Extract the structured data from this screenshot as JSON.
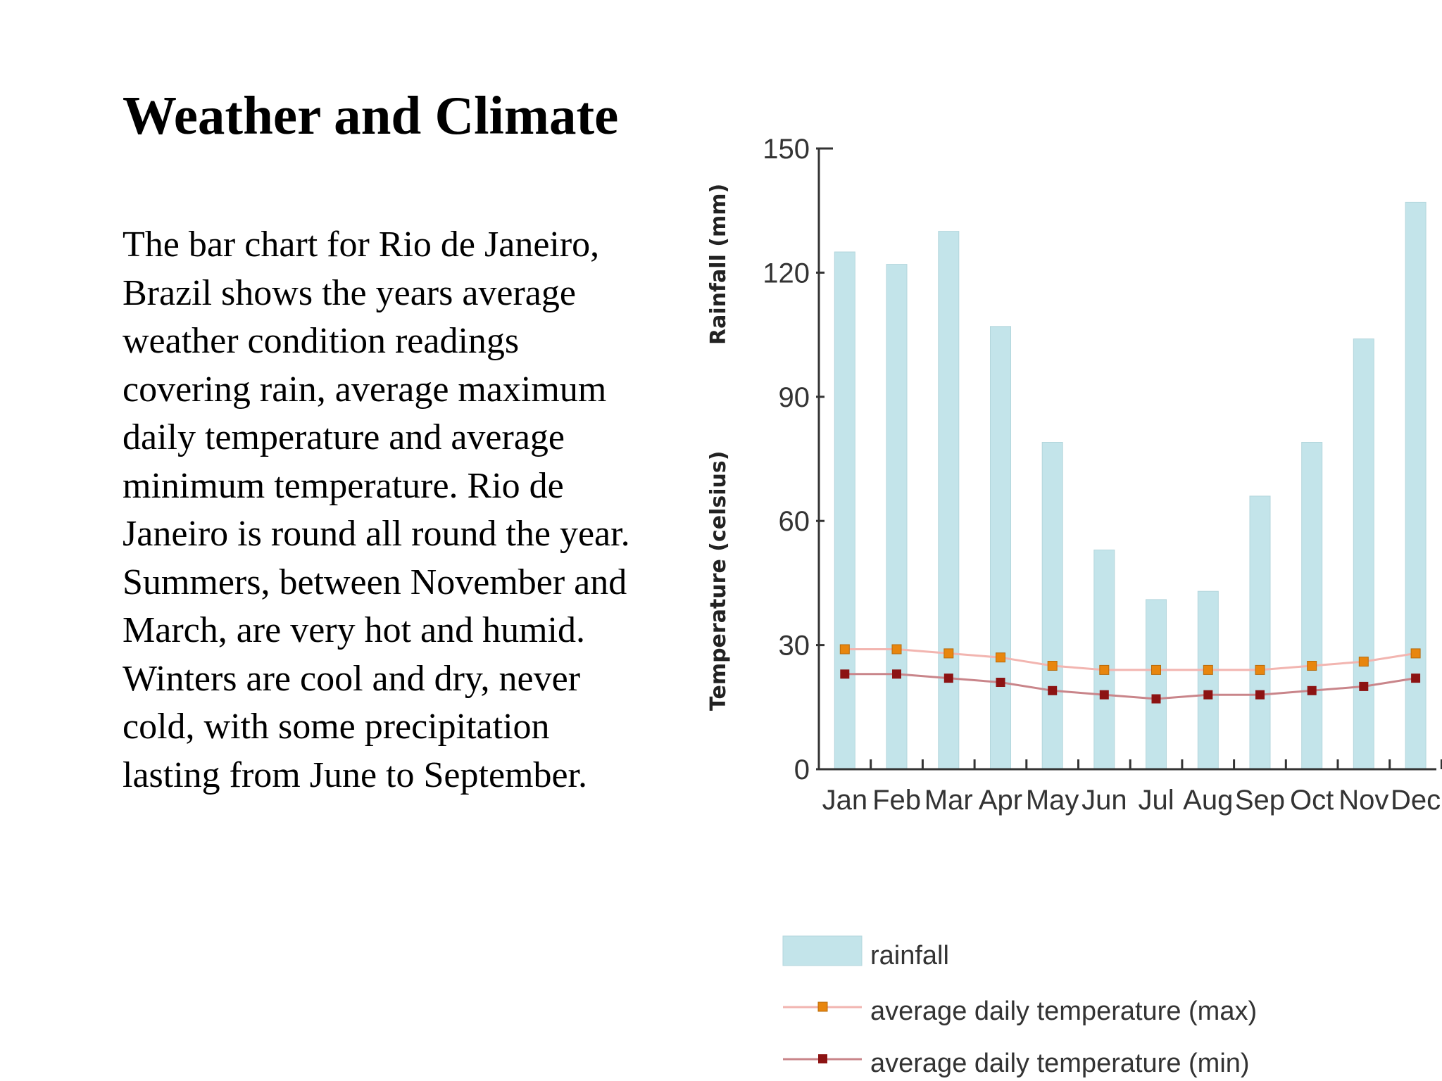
{
  "slide": {
    "title": "Weather and Climate",
    "body": "The bar chart for Rio de Janeiro, Brazil shows the years average weather condition readings covering rain, average maximum daily temperature and average minimum temperature. Rio de Janeiro is round all round the year. Summers, between November and March, are very hot and humid. Winters are cool and dry, never cold, with some precipitation lasting from June to September."
  },
  "colors": {
    "bar": "#c3e4ea",
    "max_line": "#f2b5b0",
    "max_marker": "#e8860e",
    "min_line": "#c9858a",
    "min_marker": "#8c1313",
    "axis": "#333333"
  },
  "chart_data": {
    "type": "bar",
    "categories": [
      "Jan",
      "Feb",
      "Mar",
      "Apr",
      "May",
      "Jun",
      "Jul",
      "Aug",
      "Sep",
      "Oct",
      "Nov",
      "Dec"
    ],
    "series": [
      {
        "name": "rainfall",
        "kind": "bar",
        "values": [
          125,
          122,
          130,
          107,
          79,
          53,
          41,
          43,
          66,
          79,
          104,
          137
        ]
      },
      {
        "name": "average daily temperature (max)",
        "kind": "line",
        "values": [
          29,
          29,
          28,
          27,
          25,
          24,
          24,
          24,
          24,
          25,
          26,
          28
        ]
      },
      {
        "name": "average daily temperature (min)",
        "kind": "line",
        "values": [
          23,
          23,
          22,
          21,
          19,
          18,
          17,
          18,
          18,
          19,
          20,
          22
        ]
      }
    ],
    "ylabel_top": "Rainfall (mm)",
    "ylabel_bottom": "Temperature (celsius)",
    "yticks": [
      0,
      30,
      60,
      90,
      120,
      150
    ],
    "ylim": [
      0,
      150
    ],
    "legend": [
      "rainfall",
      "average daily temperature (max)",
      "average daily temperature (min)"
    ],
    "legend_position": "bottom"
  }
}
